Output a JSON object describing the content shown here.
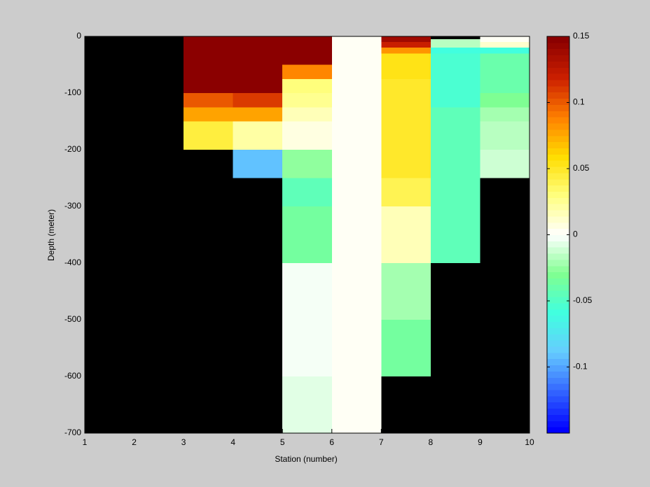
{
  "chart_data": {
    "type": "heatmap",
    "xlabel": "Station (number)",
    "ylabel": "Depth (meter)",
    "xlim": [
      1,
      10
    ],
    "xticks": [
      1,
      2,
      3,
      4,
      5,
      6,
      7,
      8,
      9,
      10
    ],
    "ylim": [
      -700,
      0
    ],
    "yticks": [
      0,
      -100,
      -200,
      -300,
      -400,
      -500,
      -600,
      -700
    ],
    "clim": [
      -0.15,
      0.15
    ],
    "cticks": [
      0.15,
      0.1,
      0.05,
      0,
      -0.05,
      -0.1
    ],
    "colormap": [
      "#0000ff",
      "#3366ff",
      "#66ccff",
      "#40ffe0",
      "#80ff90",
      "#ffffff",
      "#ffff80",
      "#ffdd00",
      "#ff8000",
      "#cc2000",
      "#8b0000"
    ],
    "background": "#000000",
    "cells": [
      {
        "x": [
          3,
          4
        ],
        "depth": [
          0,
          -100
        ],
        "value": 0.15
      },
      {
        "x": [
          3,
          4
        ],
        "depth": [
          -100,
          -125
        ],
        "value": 0.1
      },
      {
        "x": [
          3,
          4
        ],
        "depth": [
          -125,
          -150
        ],
        "value": 0.075
      },
      {
        "x": [
          3,
          4
        ],
        "depth": [
          -150,
          -200
        ],
        "value": 0.045
      },
      {
        "x": [
          4,
          5
        ],
        "depth": [
          0,
          -100
        ],
        "value": 0.15
      },
      {
        "x": [
          4,
          5
        ],
        "depth": [
          -100,
          -125
        ],
        "value": 0.11
      },
      {
        "x": [
          4,
          5
        ],
        "depth": [
          -125,
          -150
        ],
        "value": 0.075
      },
      {
        "x": [
          4,
          5
        ],
        "depth": [
          -150,
          -200
        ],
        "value": 0.02
      },
      {
        "x": [
          4,
          5
        ],
        "depth": [
          -200,
          -250
        ],
        "value": -0.09
      },
      {
        "x": [
          5,
          6
        ],
        "depth": [
          0,
          -50
        ],
        "value": 0.15
      },
      {
        "x": [
          5,
          6
        ],
        "depth": [
          -50,
          -75
        ],
        "value": 0.085
      },
      {
        "x": [
          5,
          6
        ],
        "depth": [
          -75,
          -100
        ],
        "value": 0.03
      },
      {
        "x": [
          5,
          6
        ],
        "depth": [
          -100,
          -125
        ],
        "value": 0.025
      },
      {
        "x": [
          5,
          6
        ],
        "depth": [
          -125,
          -150
        ],
        "value": 0.018
      },
      {
        "x": [
          5,
          6
        ],
        "depth": [
          -150,
          -200
        ],
        "value": 0.008
      },
      {
        "x": [
          5,
          6
        ],
        "depth": [
          -200,
          -250
        ],
        "value": -0.025
      },
      {
        "x": [
          5,
          6
        ],
        "depth": [
          -250,
          -300
        ],
        "value": -0.045
      },
      {
        "x": [
          5,
          6
        ],
        "depth": [
          -300,
          -400
        ],
        "value": -0.035
      },
      {
        "x": [
          5,
          6
        ],
        "depth": [
          -400,
          -600
        ],
        "value": -0.003
      },
      {
        "x": [
          5,
          6
        ],
        "depth": [
          -600,
          -700
        ],
        "value": -0.008
      },
      {
        "x": [
          6,
          7
        ],
        "depth": [
          0,
          -700
        ],
        "value": 0
      },
      {
        "x": [
          7,
          8
        ],
        "depth": [
          0,
          -10
        ],
        "value": 0.14
      },
      {
        "x": [
          7,
          8
        ],
        "depth": [
          -10,
          -20
        ],
        "value": 0.12
      },
      {
        "x": [
          7,
          8
        ],
        "depth": [
          -20,
          -30
        ],
        "value": 0.08
      },
      {
        "x": [
          7,
          8
        ],
        "depth": [
          -30,
          -75
        ],
        "value": 0.055
      },
      {
        "x": [
          7,
          8
        ],
        "depth": [
          -75,
          -150
        ],
        "value": 0.05
      },
      {
        "x": [
          7,
          8
        ],
        "depth": [
          -150,
          -250
        ],
        "value": 0.048
      },
      {
        "x": [
          7,
          8
        ],
        "depth": [
          -250,
          -300
        ],
        "value": 0.04
      },
      {
        "x": [
          7,
          8
        ],
        "depth": [
          -300,
          -400
        ],
        "value": 0.015
      },
      {
        "x": [
          7,
          8
        ],
        "depth": [
          -400,
          -500
        ],
        "value": -0.02
      },
      {
        "x": [
          7,
          8
        ],
        "depth": [
          -500,
          -600
        ],
        "value": -0.035
      },
      {
        "x": [
          8,
          9
        ],
        "depth": [
          -5,
          -20
        ],
        "value": -0.018
      },
      {
        "x": [
          8,
          9
        ],
        "depth": [
          -20,
          -30
        ],
        "value": -0.06
      },
      {
        "x": [
          8,
          9
        ],
        "depth": [
          -30,
          -125
        ],
        "value": -0.055
      },
      {
        "x": [
          8,
          9
        ],
        "depth": [
          -125,
          -400
        ],
        "value": -0.045
      },
      {
        "x": [
          9,
          10
        ],
        "depth": [
          0,
          -10
        ],
        "value": 0.003
      },
      {
        "x": [
          9,
          10
        ],
        "depth": [
          -10,
          -20
        ],
        "value": 0.01
      },
      {
        "x": [
          9,
          10
        ],
        "depth": [
          -20,
          -30
        ],
        "value": -0.06
      },
      {
        "x": [
          9,
          10
        ],
        "depth": [
          -30,
          -100
        ],
        "value": -0.04
      },
      {
        "x": [
          9,
          10
        ],
        "depth": [
          -100,
          -125
        ],
        "value": -0.03
      },
      {
        "x": [
          9,
          10
        ],
        "depth": [
          -125,
          -150
        ],
        "value": -0.02
      },
      {
        "x": [
          9,
          10
        ],
        "depth": [
          -150,
          -200
        ],
        "value": -0.015
      },
      {
        "x": [
          9,
          10
        ],
        "depth": [
          -200,
          -250
        ],
        "value": -0.01
      }
    ]
  }
}
